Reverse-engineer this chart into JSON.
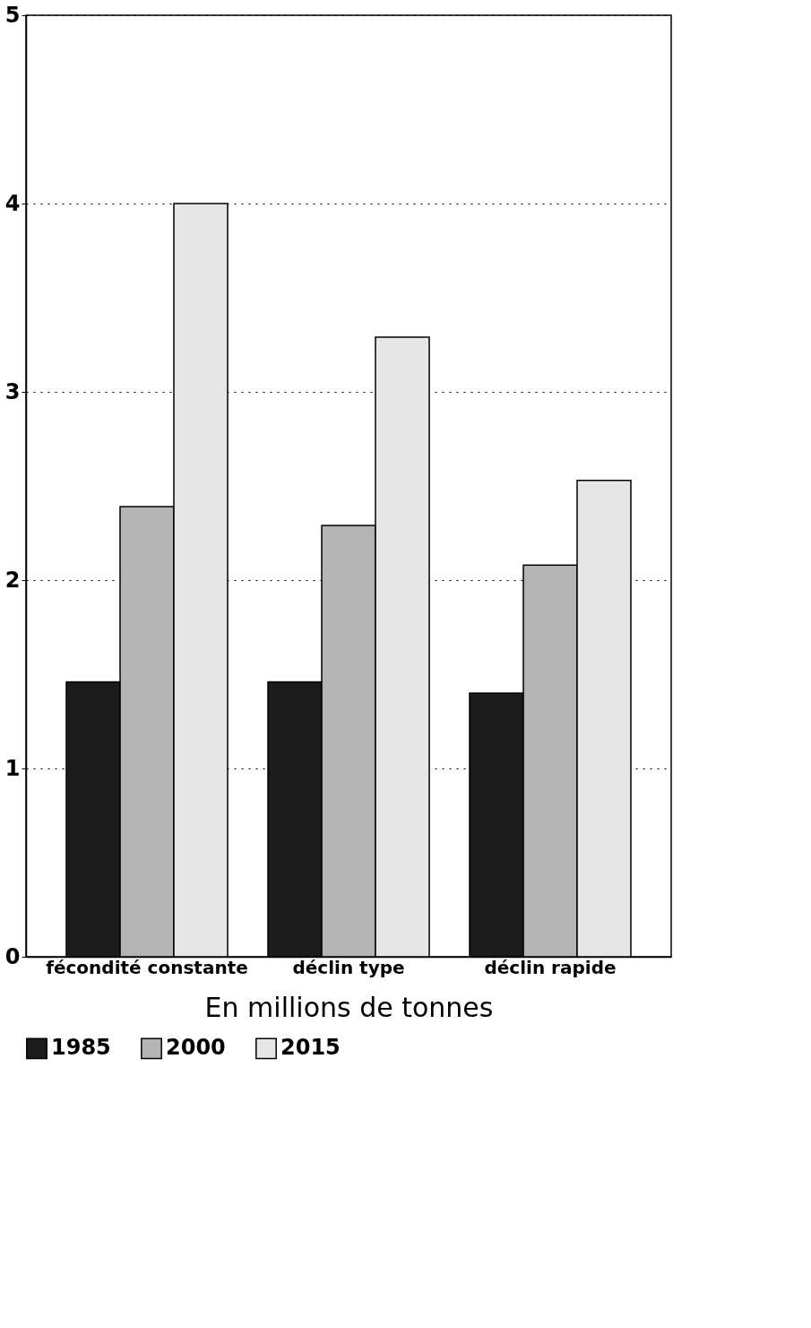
{
  "chart_data": {
    "type": "bar",
    "xlabel": "En millions de tonnes",
    "categories": [
      "fécondité constante",
      "déclin type",
      "déclin rapide"
    ],
    "series": [
      {
        "name": "1985",
        "color": "#1c1c1c",
        "values": [
          1.46,
          1.46,
          1.4
        ]
      },
      {
        "name": "2000",
        "color": "#b4b4b4",
        "values": [
          2.39,
          2.29,
          2.08
        ]
      },
      {
        "name": "2015",
        "color": "#e6e6e6",
        "values": [
          4.0,
          3.29,
          2.53
        ]
      }
    ],
    "ylim": [
      0,
      5
    ],
    "yticks": [
      0,
      1,
      2,
      3,
      4,
      5
    ],
    "grid": "y",
    "legend": "bottom"
  }
}
